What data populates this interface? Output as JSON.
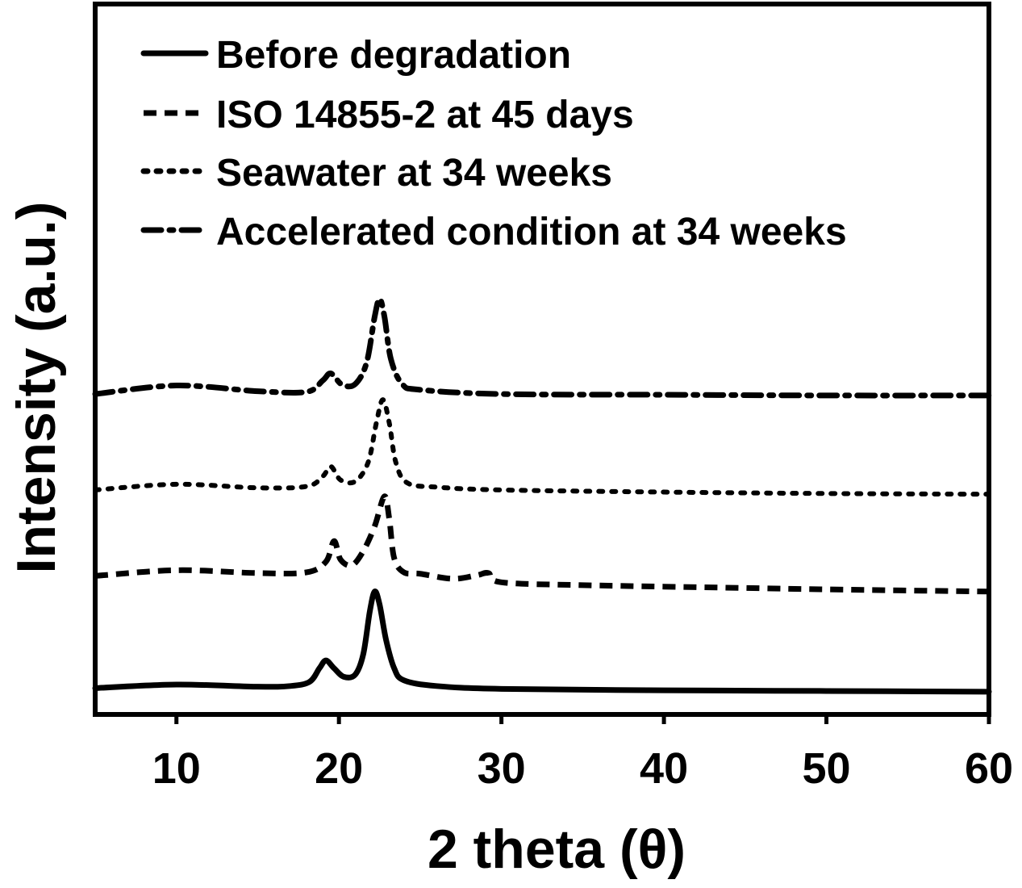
{
  "chart_data": {
    "type": "line",
    "title": "",
    "xlabel": "2 theta (θ)",
    "ylabel": "Intensity (a.u.)",
    "xlim": [
      5,
      60
    ],
    "ylim": [
      0,
      100
    ],
    "xticks": [
      "10",
      "20",
      "30",
      "40",
      "50",
      "60"
    ],
    "grid": false,
    "legend_position": "top-left",
    "series": [
      {
        "name": "Before degradation",
        "style": "solid",
        "points": [
          [
            5,
            3.7
          ],
          [
            10,
            4.2
          ],
          [
            15,
            3.9
          ],
          [
            17,
            4.0
          ],
          [
            18.2,
            4.6
          ],
          [
            18.8,
            6.5
          ],
          [
            19.2,
            7.6
          ],
          [
            19.7,
            6.5
          ],
          [
            20.3,
            5.3
          ],
          [
            21,
            5.6
          ],
          [
            21.5,
            8.5
          ],
          [
            21.9,
            14.5
          ],
          [
            22.2,
            17.3
          ],
          [
            22.5,
            15.5
          ],
          [
            22.9,
            10.5
          ],
          [
            23.4,
            6.5
          ],
          [
            24,
            4.8
          ],
          [
            26,
            4.0
          ],
          [
            30,
            3.6
          ],
          [
            40,
            3.4
          ],
          [
            50,
            3.3
          ],
          [
            60,
            3.2
          ]
        ]
      },
      {
        "name": "ISO 14855-2 at 45 days",
        "style": "dashed",
        "points": [
          [
            5,
            19.5
          ],
          [
            10,
            20.3
          ],
          [
            15,
            19.9
          ],
          [
            18,
            20.0
          ],
          [
            19.2,
            21.5
          ],
          [
            19.7,
            24.4
          ],
          [
            20.1,
            21.8
          ],
          [
            20.8,
            21.0
          ],
          [
            21.5,
            23.0
          ],
          [
            22.2,
            26.5
          ],
          [
            22.8,
            30.7
          ],
          [
            23.1,
            27.5
          ],
          [
            23.4,
            22.0
          ],
          [
            24,
            20.0
          ],
          [
            25,
            19.8
          ],
          [
            27,
            19.1
          ],
          [
            28.5,
            19.6
          ],
          [
            29.2,
            19.9
          ],
          [
            30,
            18.6
          ],
          [
            35,
            18.2
          ],
          [
            45,
            17.8
          ],
          [
            50,
            17.6
          ],
          [
            60,
            17.3
          ]
        ]
      },
      {
        "name": "Seawater at 34 weeks",
        "style": "dotted",
        "points": [
          [
            5,
            31.6
          ],
          [
            10,
            32.4
          ],
          [
            15,
            31.9
          ],
          [
            18,
            32.1
          ],
          [
            19,
            33.5
          ],
          [
            19.5,
            34.9
          ],
          [
            20.1,
            33.0
          ],
          [
            21,
            32.8
          ],
          [
            21.8,
            35.5
          ],
          [
            22.3,
            41.0
          ],
          [
            22.7,
            44.3
          ],
          [
            23.1,
            41.0
          ],
          [
            23.5,
            35.5
          ],
          [
            24.2,
            32.6
          ],
          [
            26,
            32.0
          ],
          [
            30,
            31.6
          ],
          [
            40,
            31.3
          ],
          [
            50,
            31.1
          ],
          [
            60,
            31.0
          ]
        ]
      },
      {
        "name": "Accelerated condition at 34 weeks",
        "style": "dashdot",
        "points": [
          [
            5,
            45.1
          ],
          [
            10,
            46.3
          ],
          [
            15,
            45.5
          ],
          [
            18,
            45.4
          ],
          [
            19,
            47.0
          ],
          [
            19.5,
            48.0
          ],
          [
            20.2,
            46.4
          ],
          [
            21,
            46.5
          ],
          [
            21.7,
            49.5
          ],
          [
            22.2,
            56.0
          ],
          [
            22.5,
            58.5
          ],
          [
            22.8,
            56.0
          ],
          [
            23.2,
            50.0
          ],
          [
            23.9,
            46.5
          ],
          [
            25,
            45.7
          ],
          [
            30,
            45.1
          ],
          [
            40,
            45.0
          ],
          [
            50,
            44.9
          ],
          [
            60,
            44.9
          ]
        ]
      }
    ]
  }
}
